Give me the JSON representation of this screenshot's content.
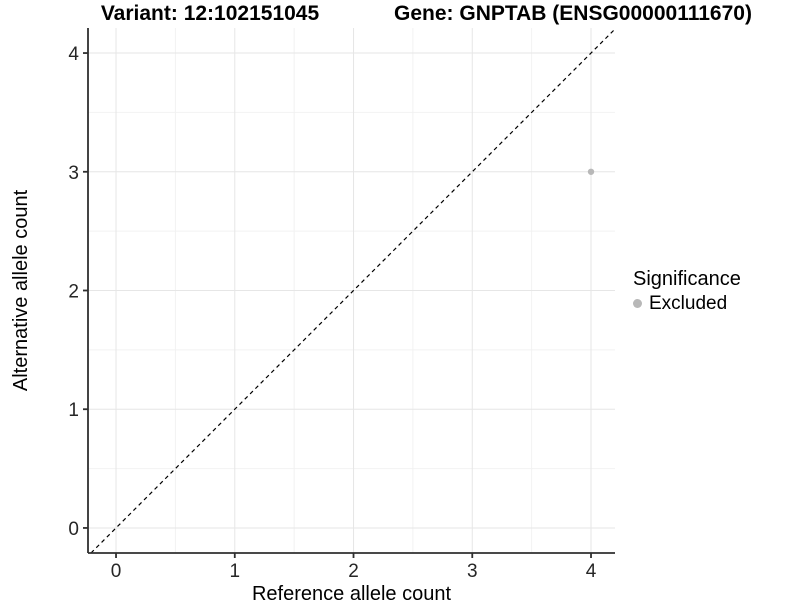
{
  "chart_data": {
    "type": "scatter",
    "titles": {
      "variant": "Variant: 12:102151045",
      "gene": "Gene: GNPTAB (ENSG00000111670)"
    },
    "xlabel": "Reference allele count",
    "ylabel": "Alternative allele count",
    "axes": {
      "x_ticks": [
        0,
        1,
        2,
        3,
        4
      ],
      "y_ticks": [
        0,
        1,
        2,
        3,
        4
      ],
      "x_minor": [
        0.5,
        1.5,
        2.5,
        3.5
      ],
      "y_minor": [
        0.5,
        1.5,
        2.5,
        3.5
      ],
      "x_range": [
        -0.236,
        4.202
      ],
      "y_range": [
        -0.211,
        4.211
      ],
      "grid": "major+minor"
    },
    "reference_line": {
      "type": "identity",
      "style": "dashed",
      "color": "#000000"
    },
    "points": [
      {
        "x": 4,
        "y": 3,
        "significance": "Excluded"
      }
    ],
    "legend": {
      "title": "Significance",
      "position": "right",
      "entries": [
        {
          "label": "Excluded",
          "color": "#b8b8b8"
        }
      ]
    },
    "colors": {
      "background": "#ffffff",
      "grid_major": "#e6e6e6",
      "grid_minor": "#f2f2f2",
      "axis_line": "#2f2f2f",
      "tick_mark": "#2f2f2f",
      "tick_label": "#262626",
      "axis_title": "#000000",
      "point": "#b8b8b8"
    }
  }
}
